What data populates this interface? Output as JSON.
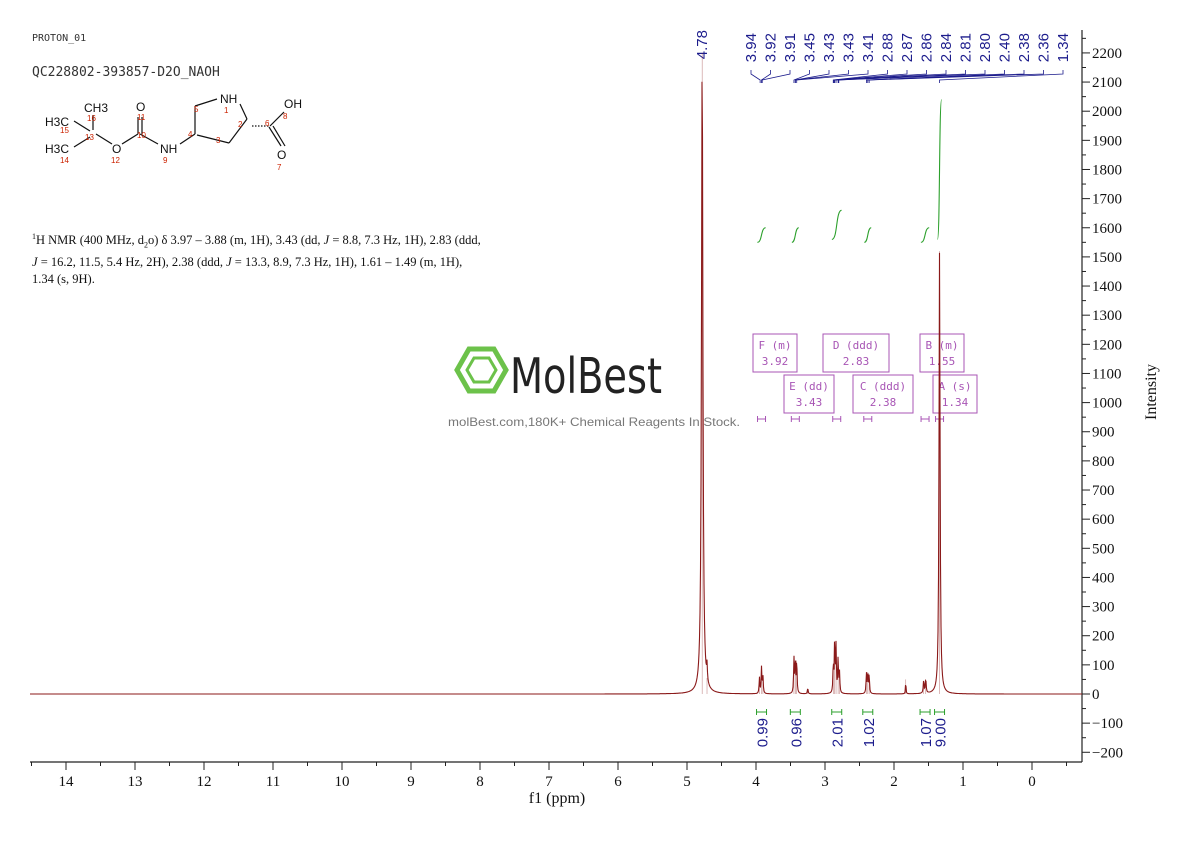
{
  "header": {
    "experiment": "PROTON_01",
    "sample": "QC228802-393857-D2O_NAOH"
  },
  "nmr_text": {
    "nucleus_sup": "1",
    "lead": "H NMR (400 MHz, d",
    "solvent_sub": "2",
    "solvent_rest": "o) δ 3.97 – 3.88 (m, 1H), 3.43 (dd, ",
    "j1": "J",
    "p1": " = 8.8, 7.3 Hz, 1H), 2.83 (ddd, ",
    "j2": "J",
    "p2": " = 16.2, 11.5, 5.4 Hz, 2H), 2.38 (ddd, ",
    "j3": "J",
    "p3": " = 13.3, 8.9, 7.3 Hz, 1H), 1.61 – 1.49 (m, 1H), 1.34 (s, 9H)."
  },
  "watermark": {
    "brand": "MolBest",
    "tagline": "molBest.com,180K+ Chemical Reagents In Stock."
  },
  "structure": {
    "atoms": {
      "ch3_top": "CH3",
      "h3c_upper": "H3C",
      "h3c_lower": "H3C",
      "carbonyl_o": "O",
      "ester_o": "O",
      "nh_amide": "NH",
      "nh_ring": "NH",
      "oh": "OH",
      "acid_o": "O"
    },
    "numbers": [
      "16",
      "15",
      "13",
      "14",
      "11",
      "10",
      "12",
      "9",
      "4",
      "5",
      "1",
      "2",
      "3",
      "6",
      "8",
      "7"
    ]
  },
  "colors": {
    "spectrum": "#8b1a1a",
    "integral": "#2ca02c",
    "peak_label": "#1c1c8c",
    "multiplet": "#a855b5",
    "watermark_green": "#6cc24a",
    "axis": "#222222",
    "atom_number": "#cc2200"
  },
  "chart_data": {
    "type": "line",
    "xlabel": "f1 (ppm)",
    "ylabel": "Intensity",
    "xlim": [
      14.5,
      -0.5
    ],
    "ylim": [
      -200,
      2250
    ],
    "x_ticks": [
      14,
      13,
      12,
      11,
      10,
      9,
      8,
      7,
      6,
      5,
      4,
      3,
      2,
      1,
      0
    ],
    "y_ticks": [
      -200,
      -100,
      0,
      100,
      200,
      300,
      400,
      500,
      600,
      700,
      800,
      900,
      1000,
      1100,
      1200,
      1300,
      1400,
      1500,
      1600,
      1700,
      1800,
      1900,
      2000,
      2100,
      2200
    ],
    "grid": false,
    "peaks": [
      {
        "ppm": 4.78,
        "height": 2200,
        "width": 0.012
      },
      {
        "ppm": 4.71,
        "height": 55,
        "width": 0.006
      },
      {
        "ppm": 3.95,
        "height": 55,
        "width": 0.006
      },
      {
        "ppm": 3.92,
        "height": 90,
        "width": 0.006
      },
      {
        "ppm": 3.9,
        "height": 60,
        "width": 0.006
      },
      {
        "ppm": 3.45,
        "height": 120,
        "width": 0.006
      },
      {
        "ppm": 3.43,
        "height": 110,
        "width": 0.006
      },
      {
        "ppm": 3.41,
        "height": 115,
        "width": 0.006
      },
      {
        "ppm": 3.25,
        "height": 20,
        "width": 0.006
      },
      {
        "ppm": 2.88,
        "height": 100,
        "width": 0.006
      },
      {
        "ppm": 2.86,
        "height": 180,
        "width": 0.006
      },
      {
        "ppm": 2.84,
        "height": 160,
        "width": 0.006
      },
      {
        "ppm": 2.81,
        "height": 120,
        "width": 0.006
      },
      {
        "ppm": 2.79,
        "height": 70,
        "width": 0.006
      },
      {
        "ppm": 2.4,
        "height": 70,
        "width": 0.006
      },
      {
        "ppm": 2.38,
        "height": 75,
        "width": 0.006
      },
      {
        "ppm": 2.36,
        "height": 65,
        "width": 0.006
      },
      {
        "ppm": 1.83,
        "height": 50,
        "width": 0.004
      },
      {
        "ppm": 1.57,
        "height": 45,
        "width": 0.007
      },
      {
        "ppm": 1.54,
        "height": 50,
        "width": 0.007
      },
      {
        "ppm": 1.34,
        "height": 1520,
        "width": 0.009
      }
    ],
    "peak_labels": [
      "4.78",
      "3.94",
      "3.92",
      "3.91",
      "3.45",
      "3.43",
      "3.43",
      "3.41",
      "2.88",
      "2.87",
      "2.86",
      "2.84",
      "2.81",
      "2.80",
      "2.40",
      "2.38",
      "2.36",
      "1.34"
    ],
    "multiplets": [
      {
        "id": "F",
        "kind": "(m)",
        "shift": "3.92",
        "ppm": 3.92
      },
      {
        "id": "D",
        "kind": "(ddd)",
        "shift": "2.83",
        "ppm": 2.83
      },
      {
        "id": "B",
        "kind": "(m)",
        "shift": "1.55",
        "ppm": 1.55
      },
      {
        "id": "E",
        "kind": "(dd)",
        "shift": "3.43",
        "ppm": 3.43
      },
      {
        "id": "C",
        "kind": "(ddd)",
        "shift": "2.38",
        "ppm": 2.38
      },
      {
        "id": "A",
        "kind": "(s)",
        "shift": "1.34",
        "ppm": 1.34
      }
    ],
    "integrals": [
      {
        "ppm": 3.92,
        "value": "0.99"
      },
      {
        "ppm": 3.43,
        "value": "0.96"
      },
      {
        "ppm": 2.83,
        "value": "2.01"
      },
      {
        "ppm": 2.38,
        "value": "1.02"
      },
      {
        "ppm": 1.55,
        "value": "1.07"
      },
      {
        "ppm": 1.34,
        "value": "9.00"
      }
    ]
  }
}
